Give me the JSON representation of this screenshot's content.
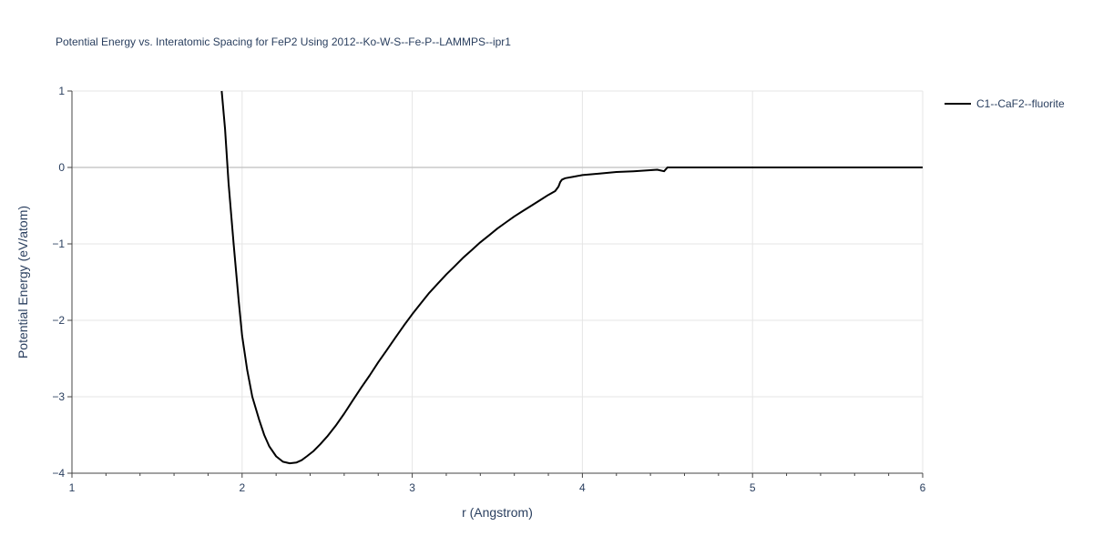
{
  "chart_data": {
    "type": "line",
    "title": "Potential Energy vs. Interatomic Spacing for FeP2 Using 2012--Ko-W-S--Fe-P--LAMMPS--ipr1",
    "xlabel": "r (Angstrom)",
    "ylabel": "Potential Energy (eV/atom)",
    "xlim": [
      1,
      6
    ],
    "ylim": [
      -4,
      1
    ],
    "x_ticks": [
      1,
      2,
      3,
      4,
      5,
      6
    ],
    "x_tick_labels": [
      "1",
      "2",
      "3",
      "4",
      "5",
      "6"
    ],
    "y_ticks": [
      1,
      0,
      -1,
      -2,
      -3,
      -4
    ],
    "y_tick_labels": [
      "1",
      "0",
      "−1",
      "−2",
      "−3",
      "−4"
    ],
    "grid": true,
    "legend_position": "top-right",
    "series": [
      {
        "name": "C1--CaF2--fluorite",
        "color": "#000000",
        "x": [
          1.88,
          1.9,
          1.92,
          1.95,
          1.98,
          2.0,
          2.03,
          2.06,
          2.1,
          2.13,
          2.16,
          2.2,
          2.24,
          2.28,
          2.32,
          2.35,
          2.38,
          2.42,
          2.46,
          2.5,
          2.55,
          2.6,
          2.65,
          2.7,
          2.75,
          2.8,
          2.85,
          2.9,
          2.95,
          3.0,
          3.05,
          3.1,
          3.15,
          3.2,
          3.25,
          3.3,
          3.35,
          3.4,
          3.45,
          3.5,
          3.55,
          3.6,
          3.65,
          3.7,
          3.75,
          3.8,
          3.84,
          3.86,
          3.87,
          3.88,
          3.89,
          3.9,
          3.95,
          4.0,
          4.1,
          4.2,
          4.3,
          4.44,
          4.48,
          4.5,
          4.6,
          5.0,
          5.5,
          6.0
        ],
        "y": [
          1.0,
          0.5,
          -0.2,
          -1.0,
          -1.75,
          -2.2,
          -2.65,
          -3.0,
          -3.3,
          -3.5,
          -3.65,
          -3.78,
          -3.85,
          -3.87,
          -3.86,
          -3.83,
          -3.78,
          -3.71,
          -3.62,
          -3.52,
          -3.38,
          -3.22,
          -3.05,
          -2.88,
          -2.72,
          -2.55,
          -2.39,
          -2.23,
          -2.07,
          -1.92,
          -1.78,
          -1.64,
          -1.52,
          -1.4,
          -1.29,
          -1.18,
          -1.08,
          -0.98,
          -0.89,
          -0.8,
          -0.72,
          -0.64,
          -0.57,
          -0.5,
          -0.43,
          -0.36,
          -0.31,
          -0.25,
          -0.19,
          -0.16,
          -0.15,
          -0.14,
          -0.12,
          -0.1,
          -0.08,
          -0.06,
          -0.05,
          -0.03,
          -0.05,
          0.0,
          0.0,
          0.0,
          0.0,
          0.0
        ]
      }
    ]
  }
}
